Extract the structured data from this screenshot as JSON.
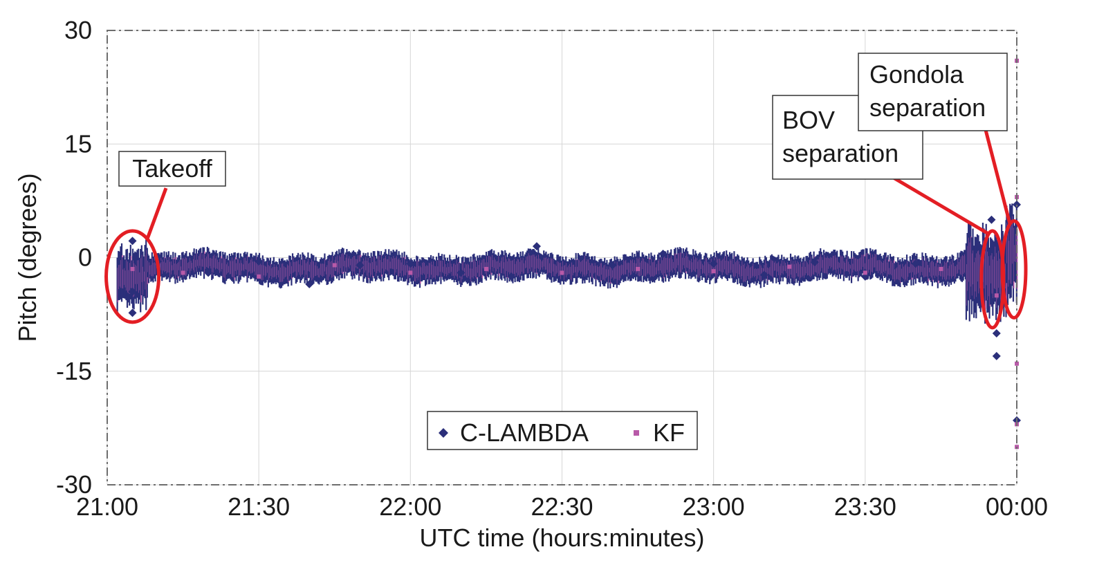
{
  "chart_data": {
    "type": "scatter",
    "title": "",
    "xlabel": "UTC time (hours:minutes)",
    "ylabel": "Pitch (degrees)",
    "xlim": [
      "21:00",
      "00:00"
    ],
    "ylim": [
      -30,
      30
    ],
    "x_ticks": [
      "21:00",
      "21:30",
      "22:00",
      "22:30",
      "23:00",
      "23:30",
      "00:00"
    ],
    "y_ticks": [
      "30",
      "15",
      "0",
      "-15",
      "-30"
    ],
    "grid": true,
    "legend": {
      "position": "bottom-center",
      "entries": [
        "C-LAMBDA",
        "KF"
      ]
    },
    "series": [
      {
        "name": "C-LAMBDA",
        "color": "#2b2f7a",
        "marker": "diamond",
        "points": [
          {
            "t": "21:05",
            "y": 2.2
          },
          {
            "t": "21:05",
            "y": -7.3
          },
          {
            "t": "21:05",
            "y": -4.5
          },
          {
            "t": "21:10",
            "y": -0.5
          },
          {
            "t": "21:20",
            "y": -2.0
          },
          {
            "t": "21:30",
            "y": -0.5
          },
          {
            "t": "21:40",
            "y": -3.5
          },
          {
            "t": "21:50",
            "y": -1.0
          },
          {
            "t": "22:00",
            "y": -0.8
          },
          {
            "t": "22:10",
            "y": -2.0
          },
          {
            "t": "22:20",
            "y": -2.5
          },
          {
            "t": "22:25",
            "y": 1.5
          },
          {
            "t": "22:40",
            "y": -1.0
          },
          {
            "t": "22:50",
            "y": 0.5
          },
          {
            "t": "23:00",
            "y": -0.8
          },
          {
            "t": "23:10",
            "y": -2.3
          },
          {
            "t": "23:20",
            "y": -0.6
          },
          {
            "t": "23:30",
            "y": -2.5
          },
          {
            "t": "23:40",
            "y": -0.8
          },
          {
            "t": "23:55",
            "y": 5.0
          },
          {
            "t": "23:56",
            "y": -13.0
          },
          {
            "t": "23:56",
            "y": -10.0
          },
          {
            "t": "00:00",
            "y": 7.0
          },
          {
            "t": "00:00",
            "y": -21.5
          }
        ]
      },
      {
        "name": "KF",
        "color": "#b85aa8",
        "marker": "square",
        "points": [
          {
            "t": "21:05",
            "y": -1.5
          },
          {
            "t": "21:15",
            "y": -2.0
          },
          {
            "t": "21:30",
            "y": -2.5
          },
          {
            "t": "21:45",
            "y": -1.0
          },
          {
            "t": "22:00",
            "y": -2.0
          },
          {
            "t": "22:15",
            "y": -1.5
          },
          {
            "t": "22:30",
            "y": -2.0
          },
          {
            "t": "22:45",
            "y": -1.5
          },
          {
            "t": "23:00",
            "y": -1.8
          },
          {
            "t": "23:15",
            "y": -1.2
          },
          {
            "t": "23:30",
            "y": -2.0
          },
          {
            "t": "23:45",
            "y": -1.5
          },
          {
            "t": "23:56",
            "y": -5.0
          },
          {
            "t": "00:00",
            "y": 26.0
          },
          {
            "t": "00:00",
            "y": 8.0
          },
          {
            "t": "00:00",
            "y": -14.0
          },
          {
            "t": "00:00",
            "y": -22.0
          },
          {
            "t": "00:00",
            "y": -25.0
          }
        ]
      }
    ],
    "band": {
      "note_mean": -1.5,
      "segments": [
        {
          "from": "21:02",
          "to": "21:08",
          "lo": -7.0,
          "hi": 2.5
        },
        {
          "from": "21:08",
          "to": "23:50",
          "lo": -3.5,
          "hi": 0.8
        },
        {
          "from": "23:50",
          "to": "23:58",
          "lo": -9.0,
          "hi": 4.5
        },
        {
          "from": "23:58",
          "to": "00:00",
          "lo": -7.0,
          "hi": 6.5
        }
      ]
    },
    "annotations": [
      {
        "text": "Takeoff",
        "t": "21:05",
        "y": -2.5
      },
      {
        "text_lines": [
          "BOV",
          "separation"
        ],
        "t": "23:56",
        "y": -2.5
      },
      {
        "text_lines": [
          "Gondola",
          "separation"
        ],
        "t": "00:00",
        "y": -1.0
      }
    ],
    "annotation_color": "#e31e24"
  }
}
